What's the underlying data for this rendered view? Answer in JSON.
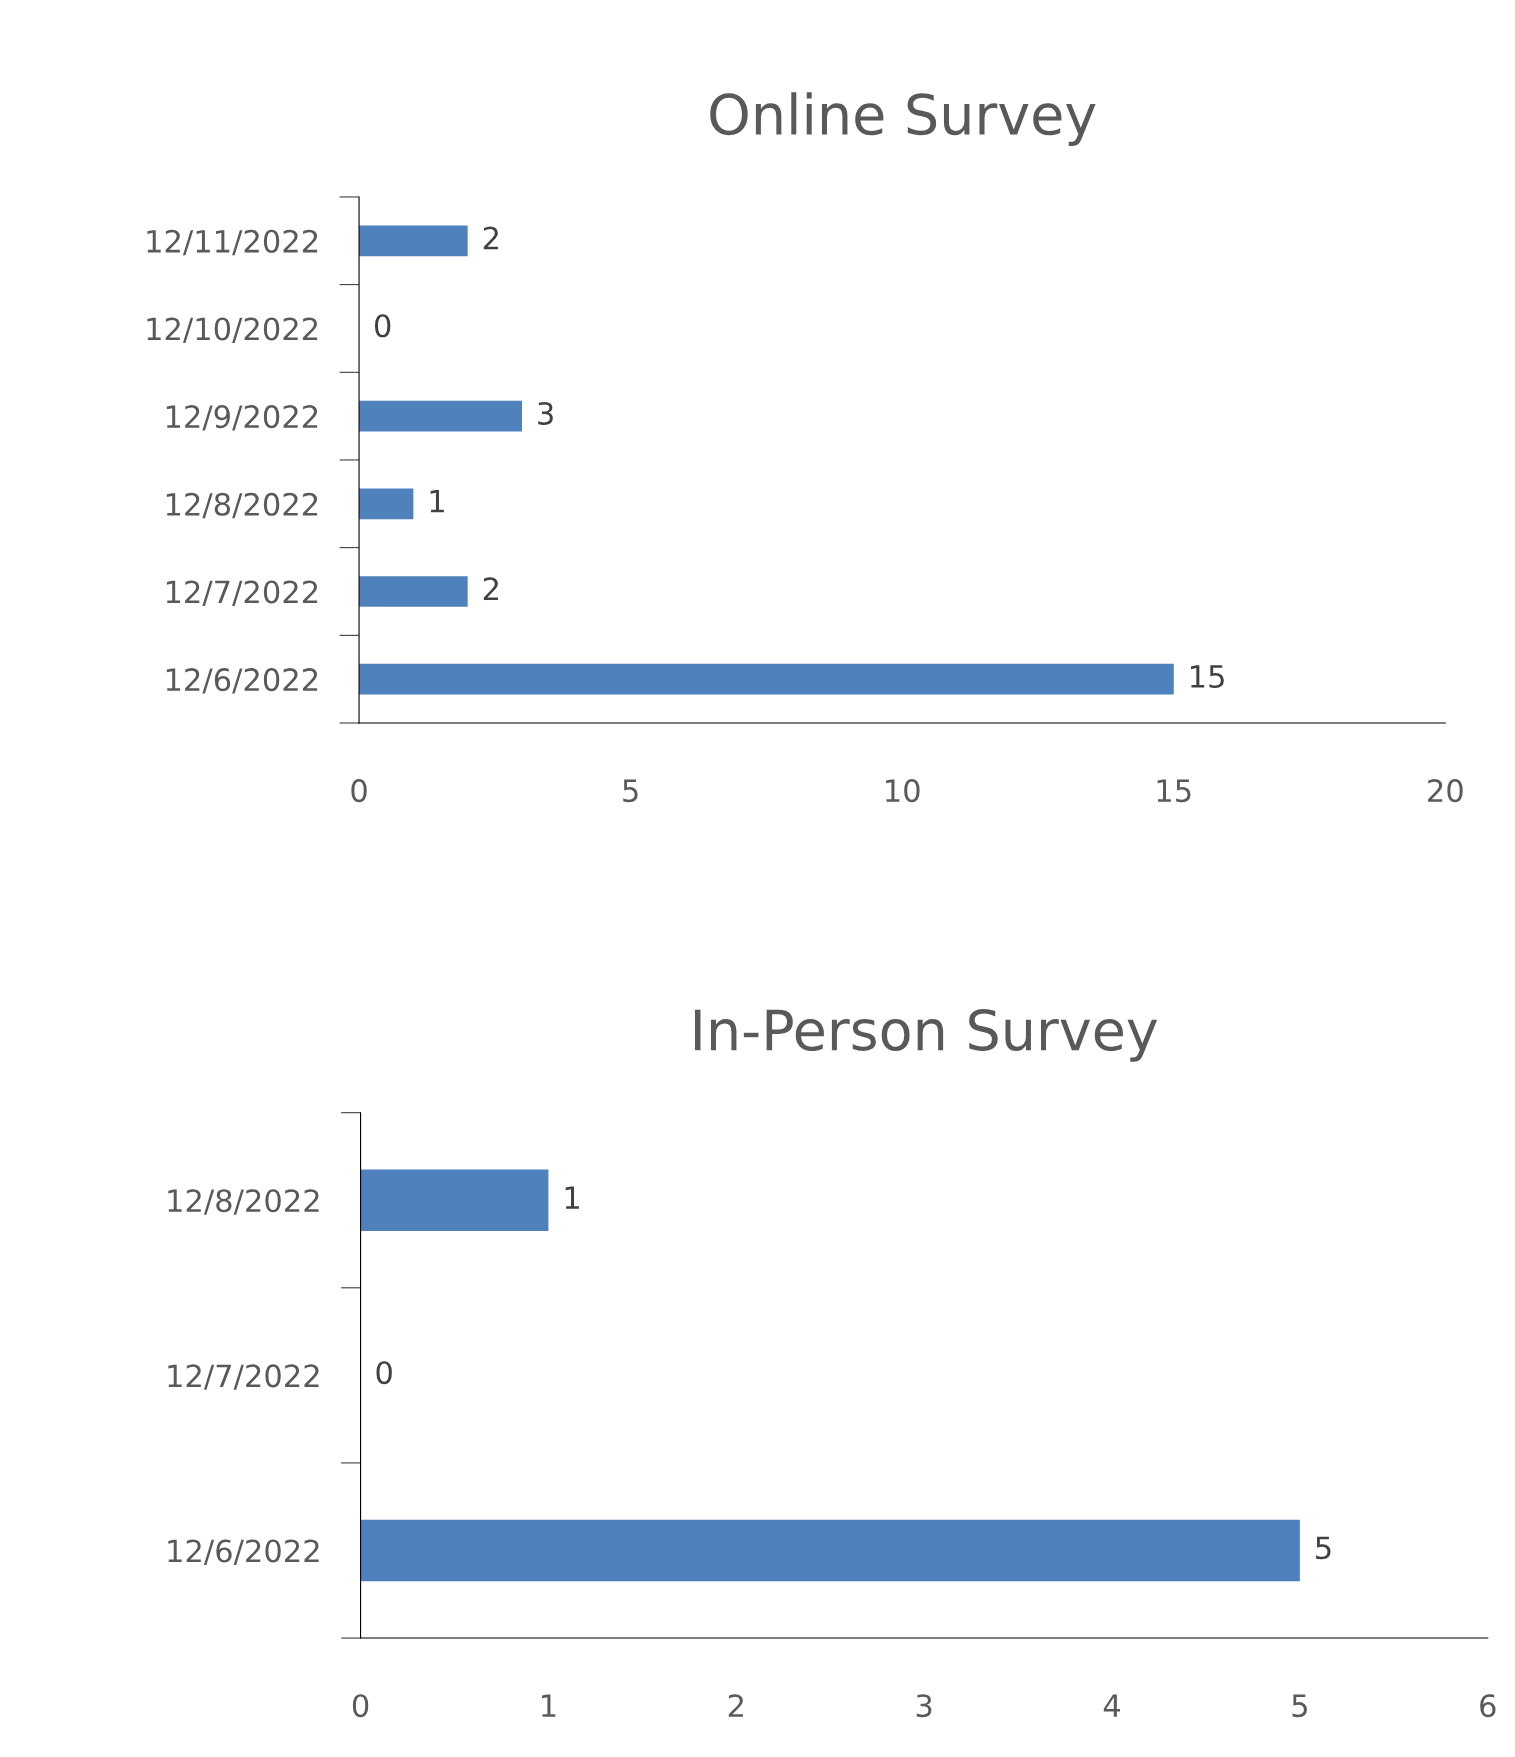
{
  "chart_data": [
    {
      "type": "bar",
      "orientation": "horizontal",
      "title": "Online Survey",
      "categories": [
        "12/11/2022",
        "12/10/2022",
        "12/9/2022",
        "12/8/2022",
        "12/7/2022",
        "12/6/2022"
      ],
      "values": [
        2,
        0,
        3,
        1,
        2,
        15
      ],
      "color": "#4f81bd",
      "xlim": [
        0,
        20
      ],
      "xticks": [
        0,
        5,
        10,
        15,
        20
      ],
      "data_labels": true,
      "grid": false,
      "legend": false
    },
    {
      "type": "bar",
      "orientation": "horizontal",
      "title": "In-Person Survey",
      "categories": [
        "12/8/2022",
        "12/7/2022",
        "12/6/2022"
      ],
      "values": [
        1,
        0,
        5
      ],
      "color": "#4f81bd",
      "xlim": [
        0,
        6
      ],
      "xticks": [
        0,
        1,
        2,
        3,
        4,
        5,
        6
      ],
      "data_labels": true,
      "grid": false,
      "legend": false
    }
  ]
}
